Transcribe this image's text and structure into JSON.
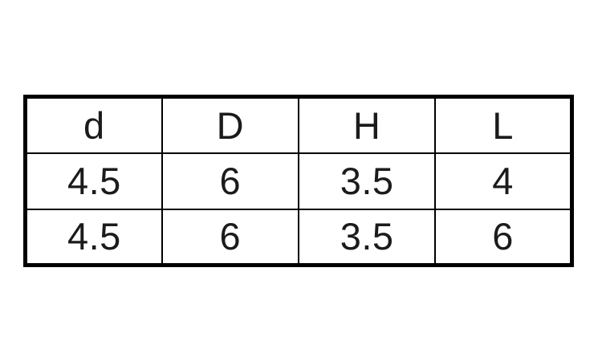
{
  "chart_data": {
    "type": "table",
    "title": "",
    "columns": [
      "d",
      "D",
      "H",
      "L"
    ],
    "rows": [
      [
        "4.5",
        "6",
        "3.5",
        "4"
      ],
      [
        "4.5",
        "6",
        "3.5",
        "6"
      ]
    ],
    "layout": {
      "grid": "on",
      "outer_border_px": 5,
      "inner_border_px": 2
    }
  },
  "colors": {
    "border": "#000000",
    "text": "#1b1b1b",
    "background": "#ffffff"
  }
}
